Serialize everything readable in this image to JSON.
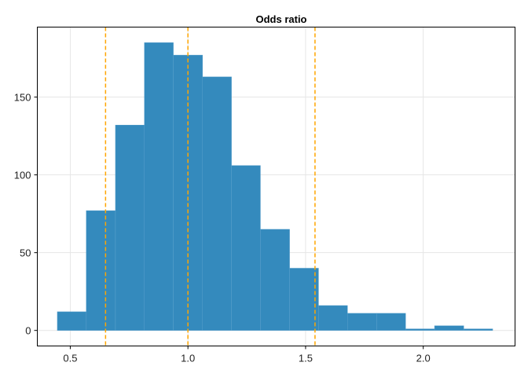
{
  "chart_data": {
    "type": "bar",
    "title": "Odds ratio",
    "xlabel": "",
    "ylabel": "",
    "xlim": [
      0.36,
      2.39
    ],
    "ylim": [
      -10,
      195
    ],
    "xticks": [
      0.5,
      1.0,
      1.5,
      2.0
    ],
    "xtick_labels": [
      "0.5",
      "1.0",
      "1.5",
      "2.0"
    ],
    "yticks": [
      0,
      50,
      100,
      150
    ],
    "ytick_labels": [
      "0",
      "50",
      "100",
      "150"
    ],
    "grid": true,
    "legend": "none",
    "bins": [
      {
        "x0": 0.445,
        "x1": 0.568,
        "count": 12
      },
      {
        "x0": 0.568,
        "x1": 0.692,
        "count": 77
      },
      {
        "x0": 0.692,
        "x1": 0.815,
        "count": 132
      },
      {
        "x0": 0.815,
        "x1": 0.938,
        "count": 185
      },
      {
        "x0": 0.938,
        "x1": 1.062,
        "count": 177
      },
      {
        "x0": 1.062,
        "x1": 1.185,
        "count": 163
      },
      {
        "x0": 1.185,
        "x1": 1.308,
        "count": 106
      },
      {
        "x0": 1.308,
        "x1": 1.432,
        "count": 65
      },
      {
        "x0": 1.432,
        "x1": 1.555,
        "count": 40
      },
      {
        "x0": 1.555,
        "x1": 1.678,
        "count": 16
      },
      {
        "x0": 1.678,
        "x1": 1.802,
        "count": 11
      },
      {
        "x0": 1.802,
        "x1": 1.925,
        "count": 11
      },
      {
        "x0": 1.925,
        "x1": 2.048,
        "count": 1
      },
      {
        "x0": 2.048,
        "x1": 2.172,
        "count": 3
      },
      {
        "x0": 2.172,
        "x1": 2.295,
        "count": 1
      }
    ],
    "reference_lines": [
      0.65,
      1.0,
      1.54
    ],
    "colors": {
      "bar": "#348abd",
      "reference_line": "#ffa500",
      "grid": "#e6e6e6",
      "axis": "#000000"
    }
  }
}
